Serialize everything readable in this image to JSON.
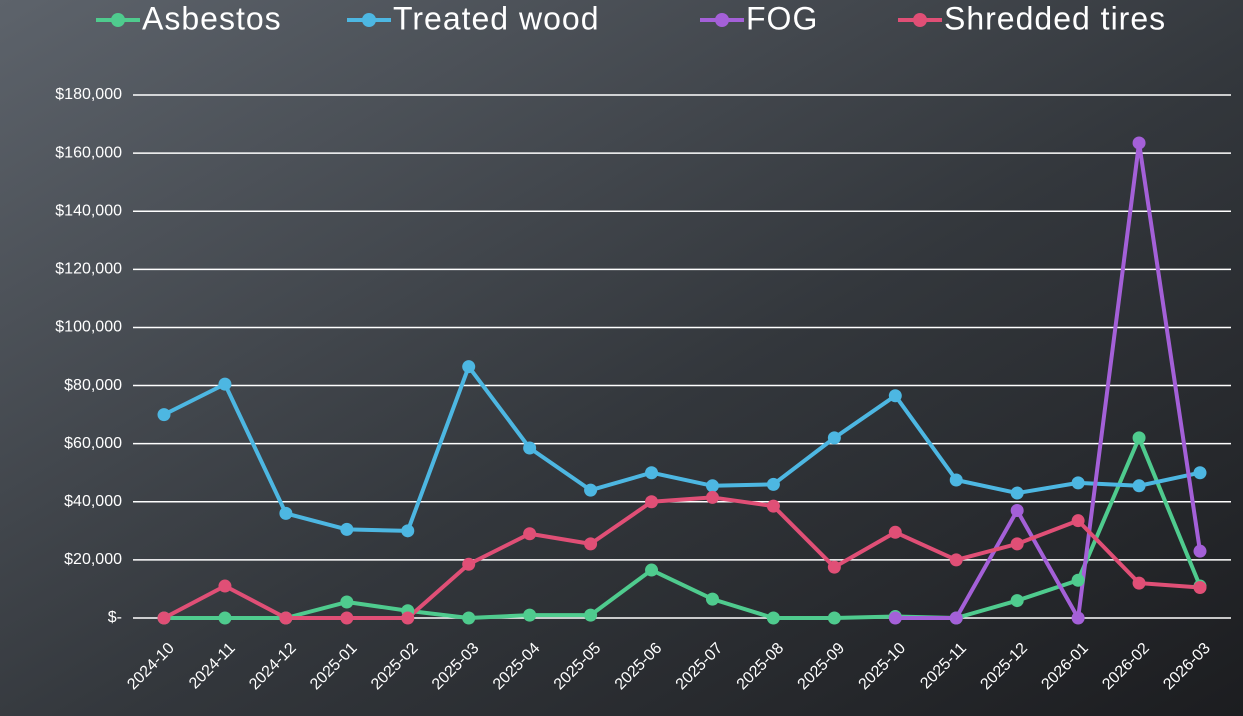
{
  "chart_data": {
    "type": "line",
    "categories": [
      "2024-10",
      "2024-11",
      "2024-12",
      "2025-01",
      "2025-02",
      "2025-03",
      "2025-04",
      "2025-05",
      "2025-06",
      "2025-07",
      "2025-08",
      "2025-09",
      "2025-10",
      "2025-11",
      "2025-12",
      "2026-01",
      "2026-02",
      "2026-03"
    ],
    "series": [
      {
        "name": "Asbestos",
        "color": "#4fcb8e",
        "values": [
          0,
          0,
          0,
          5500,
          2500,
          0,
          1000,
          1000,
          16500,
          6500,
          0,
          0,
          500,
          0,
          6000,
          13000,
          62000,
          11000
        ]
      },
      {
        "name": "Treated wood",
        "color": "#4db7e2",
        "values": [
          70000,
          80500,
          36000,
          30500,
          30000,
          86500,
          58500,
          44000,
          50000,
          45500,
          46000,
          62000,
          76500,
          47500,
          43000,
          46500,
          45500,
          50000
        ]
      },
      {
        "name": "FOG",
        "color": "#a460d8",
        "values": [
          null,
          null,
          null,
          null,
          null,
          null,
          null,
          null,
          null,
          null,
          null,
          null,
          0,
          0,
          37000,
          0,
          163500,
          23000
        ]
      },
      {
        "name": "Shredded tires",
        "color": "#e04f76",
        "values": [
          0,
          11000,
          0,
          0,
          0,
          18500,
          29000,
          25500,
          40000,
          41500,
          38500,
          17500,
          29500,
          20000,
          25500,
          33500,
          12000,
          10500
        ]
      }
    ],
    "ylim": [
      0,
      180000
    ],
    "yticks": [
      {
        "value": 0,
        "label": "$-"
      },
      {
        "value": 20000,
        "label": "$20,000"
      },
      {
        "value": 40000,
        "label": "$40,000"
      },
      {
        "value": 60000,
        "label": "$60,000"
      },
      {
        "value": 80000,
        "label": "$80,000"
      },
      {
        "value": 100000,
        "label": "$100,000"
      },
      {
        "value": 120000,
        "label": "$120,000"
      },
      {
        "value": 140000,
        "label": "$140,000"
      },
      {
        "value": 160000,
        "label": "$160,000"
      },
      {
        "value": 180000,
        "label": "$180,000"
      }
    ],
    "grid": true,
    "legend": "top"
  }
}
